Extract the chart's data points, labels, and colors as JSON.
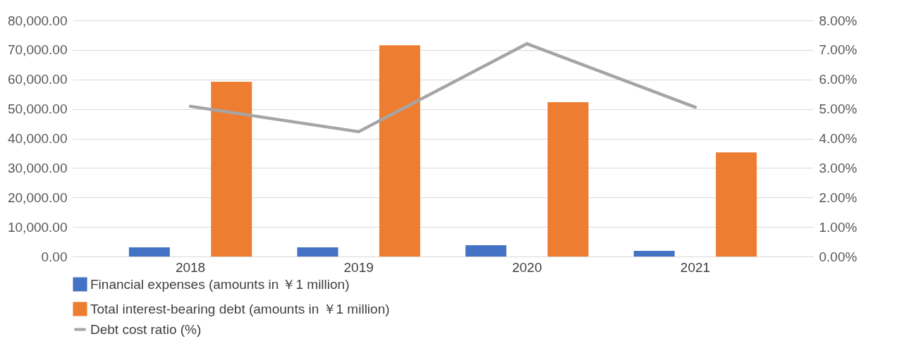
{
  "chart_data": {
    "type": "bar",
    "categories": [
      "2018",
      "2019",
      "2020",
      "2021"
    ],
    "series": [
      {
        "name": "Financial expenses (amounts in ￥1 million)",
        "color": "#4472c4",
        "values": [
          3100,
          3100,
          3800,
          1900
        ]
      },
      {
        "name": "Total interest-bearing debt (amounts in ￥1 million)",
        "color": "#ed7d31",
        "values": [
          59200,
          71600,
          52300,
          35300
        ]
      },
      {
        "name": "Debt cost ratio (%)",
        "type": "line",
        "axis": "y2",
        "color": "#a5a5a5",
        "values": [
          5.09,
          4.23,
          7.21,
          5.06
        ]
      }
    ],
    "ylim": [
      0,
      80000
    ],
    "yticks": [
      {
        "value": 0,
        "label": "0.00"
      },
      {
        "value": 10000,
        "label": "10,000.00"
      },
      {
        "value": 20000,
        "label": "20,000.00"
      },
      {
        "value": 30000,
        "label": "30,000.00"
      },
      {
        "value": 40000,
        "label": "40,000.00"
      },
      {
        "value": 50000,
        "label": "50,000.00"
      },
      {
        "value": 60000,
        "label": "60,000.00"
      },
      {
        "value": 70000,
        "label": "70,000.00"
      },
      {
        "value": 80000,
        "label": "80,000.00"
      }
    ],
    "y2lim": [
      0,
      8
    ],
    "y2ticks": [
      {
        "value": 0,
        "label": "0.00%"
      },
      {
        "value": 1,
        "label": "1.00%"
      },
      {
        "value": 2,
        "label": "2.00%"
      },
      {
        "value": 3,
        "label": "3.00%"
      },
      {
        "value": 4,
        "label": "4.00%"
      },
      {
        "value": 5,
        "label": "5.00%"
      },
      {
        "value": 6,
        "label": "6.00%"
      },
      {
        "value": 7,
        "label": "7.00%"
      },
      {
        "value": 8,
        "label": "8.00%"
      }
    ],
    "grid": "y",
    "legend": "bottom"
  }
}
